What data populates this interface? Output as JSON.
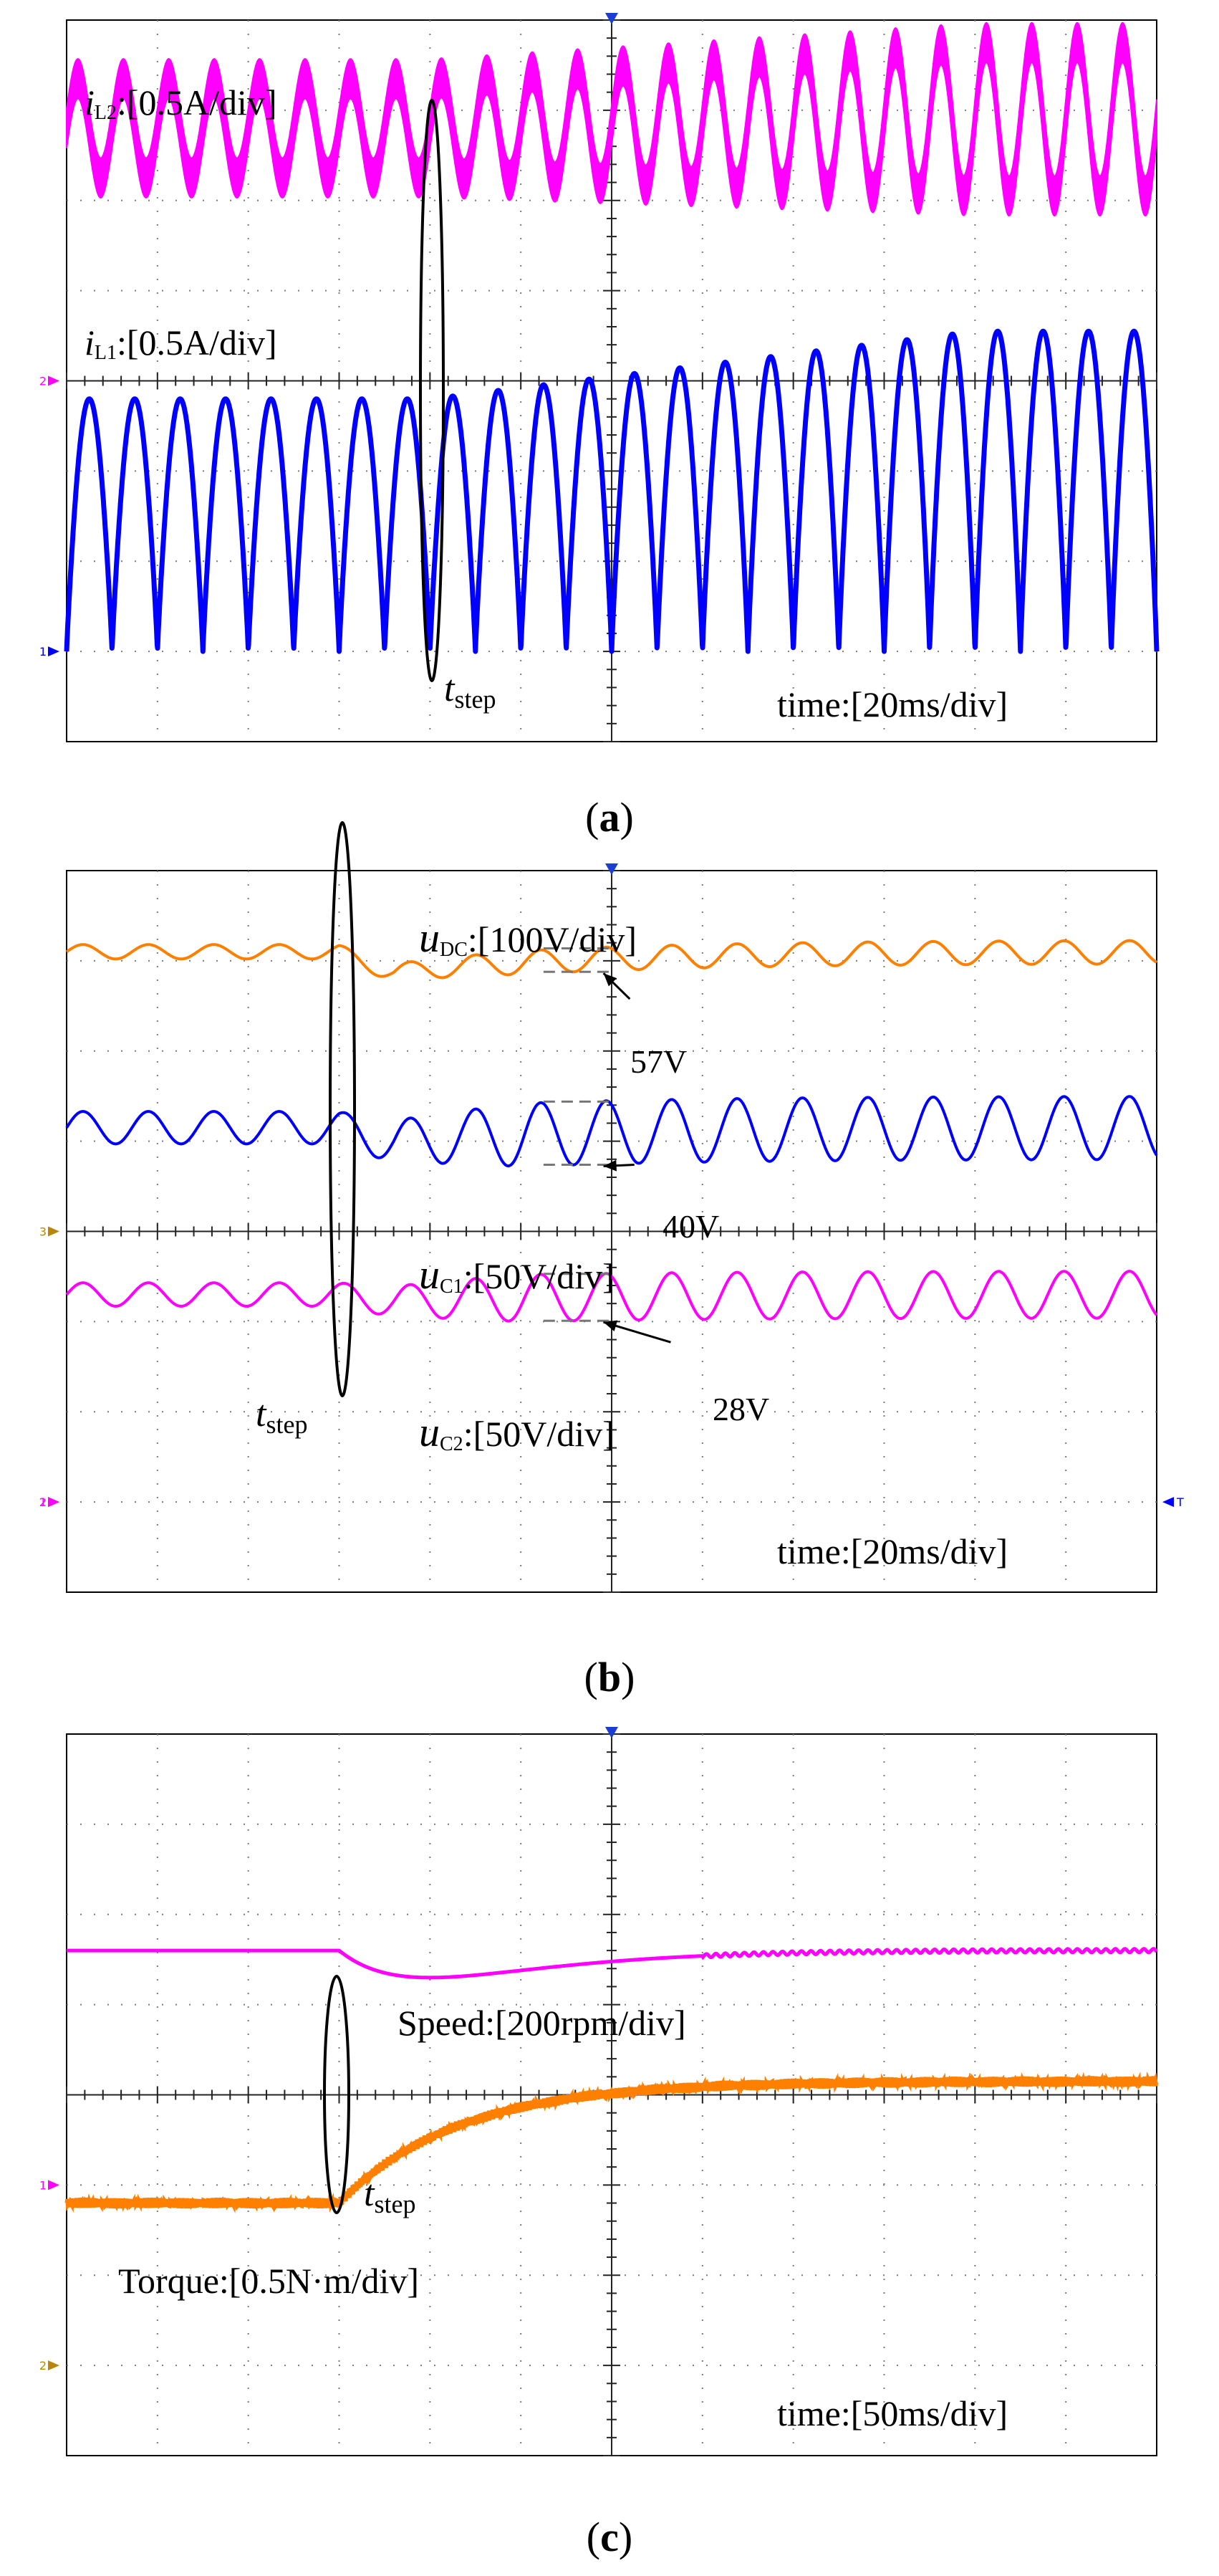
{
  "chart_data": [
    {
      "panel": "(a)",
      "type": "line",
      "caption_prefix": "(",
      "caption_letter": "a",
      "caption_suffix": ")",
      "time_label": "time:[20ms/div]",
      "grid": true,
      "x_divisions": 12,
      "y_divisions": 8,
      "step_marker": {
        "symbol": "t",
        "subscript": "step",
        "time_div": 4.0
      },
      "channel_markers": [
        {
          "text": "2",
          "level_div": 4.0,
          "color": "#ff00ff"
        },
        {
          "text": "1",
          "level_div": 1.0,
          "color": "#0000ff"
        }
      ],
      "series": [
        {
          "name": "iL2",
          "label_symbol": "i",
          "label_sub": "L2",
          "label_scale": ":[0.5A/div]",
          "color": "#ff00ff",
          "cycles_div": 0.5,
          "before": {
            "center_div": 6.8,
            "amplitude_div": 0.55
          },
          "after": {
            "center_div": 6.9,
            "amplitude_div": 0.85
          }
        },
        {
          "name": "iL1",
          "label_symbol": "i",
          "label_sub": "L1",
          "label_scale": ":[0.5A/div]",
          "color": "#0000ff",
          "cycles_div": 0.5,
          "before": {
            "floor_div": 1.0,
            "peak_div": 3.8
          },
          "after": {
            "floor_div": 1.0,
            "peak_div": 4.55
          }
        }
      ]
    },
    {
      "panel": "(b)",
      "type": "line",
      "caption_prefix": "(",
      "caption_letter": "b",
      "caption_suffix": ")",
      "time_label": "time:[20ms/div]",
      "grid": true,
      "x_divisions": 12,
      "y_divisions": 8,
      "step_marker": {
        "symbol": "t",
        "subscript": "step",
        "time_div": 3.0
      },
      "channel_markers": [
        {
          "text": "3",
          "level_div": 4.0,
          "color": "#b8860b"
        },
        {
          "text": "1",
          "level_div": 1.0,
          "color": "#ff00ff"
        },
        {
          "text": "2",
          "level_div": 1.0,
          "color": "#ff00ff"
        }
      ],
      "trigger_marker": {
        "text": "T",
        "level_div": 1.0,
        "color": "#0000ff"
      },
      "series": [
        {
          "name": "uDC",
          "label_symbol": "u",
          "label_sub": "DC",
          "label_scale": ":[100V/div]",
          "color": "#ff8000",
          "cycles_div": 0.72,
          "before": {
            "center_div": 7.1,
            "amplitude_div": 0.08
          },
          "dip_div": 0.3,
          "after_amplitude_div": 0.13,
          "annotation": "57V"
        },
        {
          "name": "uC1",
          "label_symbol": "u",
          "label_sub": "C1",
          "label_scale": ":[50V/div]",
          "color": "#0000ff",
          "cycles_div": 0.72,
          "before": {
            "center_div": 5.15,
            "amplitude_div": 0.18
          },
          "dip_div": 0.2,
          "after_amplitude_div": 0.35,
          "annotation": "40V"
        },
        {
          "name": "uC2",
          "label_symbol": "u",
          "label_sub": "C2",
          "label_scale": ":[50V/div]",
          "color": "#ff00ff",
          "cycles_div": 0.72,
          "before": {
            "center_div": 3.3,
            "amplitude_div": 0.13
          },
          "dip_div": 0.1,
          "after_amplitude_div": 0.26,
          "annotation": "28V"
        }
      ]
    },
    {
      "panel": "(c)",
      "type": "line",
      "caption_prefix": "(",
      "caption_letter": "c",
      "caption_suffix": ")",
      "time_label": "time:[50ms/div]",
      "grid": true,
      "x_divisions": 12,
      "y_divisions": 8,
      "step_marker": {
        "symbol": "t",
        "subscript": "step",
        "time_div": 3.0
      },
      "channel_markers": [
        {
          "text": "1",
          "level_div": 3.0,
          "color": "#ff00ff"
        },
        {
          "text": "2",
          "level_div": 1.0,
          "color": "#b8860b"
        }
      ],
      "series": [
        {
          "name": "Speed",
          "label": "Speed:[200rpm/div]",
          "color": "#ff00ff",
          "before_div": 5.6,
          "dip_div": 0.3,
          "settle_div": 5.6
        },
        {
          "name": "Torque",
          "label": "Torque:[0.5N·m/div]",
          "color": "#ff8000",
          "before_div": 2.8,
          "final_div": 4.15
        }
      ]
    }
  ]
}
